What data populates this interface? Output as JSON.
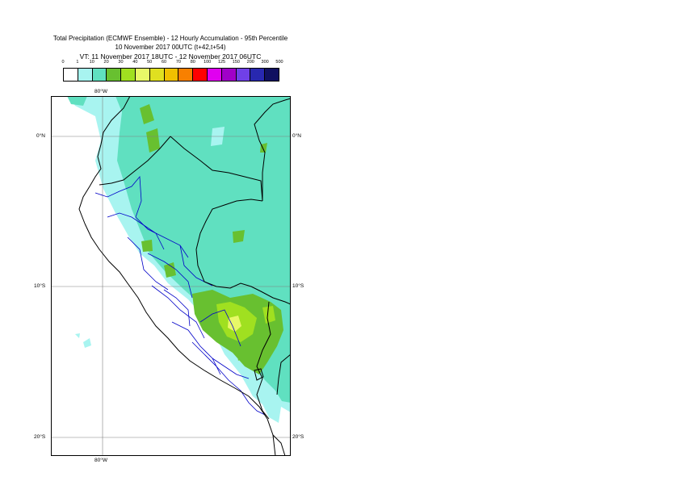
{
  "title": {
    "line1": "Total Precipitation (ECMWF Ensemble) - 12 Hourly Accumulation - 95th Percentile",
    "line2": "10 November 2017 00UTC (t+42,t+54)",
    "line3": "VT: 11 November 2017 18UTC - 12 November 2017 06UTC"
  },
  "legend": {
    "labels": [
      "0",
      "1",
      "10",
      "20",
      "30",
      "40",
      "50",
      "60",
      "70",
      "80",
      "100",
      "125",
      "150",
      "200",
      "300",
      "500"
    ],
    "colors": [
      "#ffffff",
      "#a8f4f0",
      "#60e0c0",
      "#68c030",
      "#a0e020",
      "#e8f868",
      "#e0e020",
      "#f0c000",
      "#f88000",
      "#ff0000",
      "#e000f0",
      "#a000c8",
      "#7040e8",
      "#2828b0",
      "#101060"
    ]
  },
  "axes": {
    "lon_top": "80°W",
    "lon_bottom": "80°W",
    "lat_0_left": "0°N",
    "lat_0_right": "0°N",
    "lat_10_left": "10°S",
    "lat_10_right": "10°S",
    "lat_20_left": "20°S",
    "lat_20_right": "20°S"
  },
  "map_colors": {
    "light": "#a8f4f0",
    "medium": "#60e0c0",
    "green": "#68c030",
    "lime": "#a0e020",
    "yellow": "#e8f868",
    "country_border": "#000000",
    "region_border": "#0000c8",
    "grid": "#808080"
  }
}
